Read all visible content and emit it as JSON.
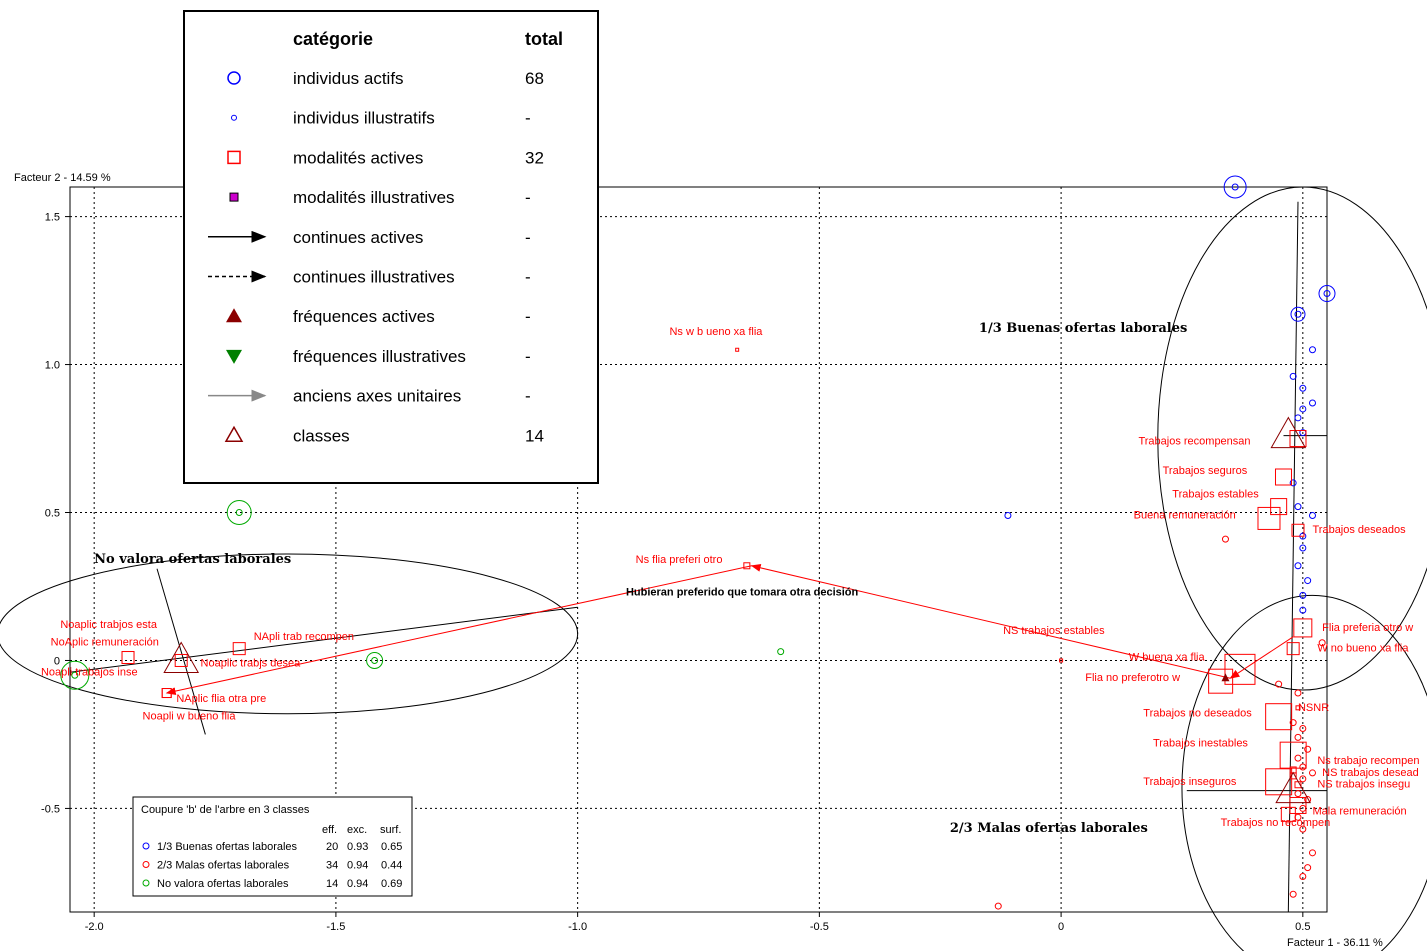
{
  "chart_data": {
    "type": "scatter",
    "xlabel": "Facteur 1  -  36.11 %",
    "ylabel": "Facteur 2  -  14.59 %",
    "xlim": [
      -2.05,
      0.55
    ],
    "ylim": [
      -0.85,
      1.6
    ],
    "x_ticks": [
      -2.0,
      -1.5,
      -1.0,
      -0.5,
      0,
      0.5
    ],
    "x_tick_labels": [
      "-2.0",
      "-1.5",
      "-1.0",
      "-0.5",
      "0",
      "0.5"
    ],
    "y_ticks": [
      -0.5,
      0,
      0.5,
      1.0,
      1.5
    ],
    "y_tick_labels": [
      "-0.5",
      "0",
      "0.5",
      "1.0",
      "1.5"
    ],
    "grid": true,
    "colors": {
      "active": "#ff0000",
      "class1": "#0000ff",
      "class2": "#ff0000",
      "class3": "#00aa00",
      "class_marker": "#8b0000"
    },
    "modalities": [
      {
        "label": "Ns w b ueno xa flia",
        "x": -0.67,
        "y": 1.05,
        "size": 3,
        "lx": -0.81,
        "ly": 1.1
      },
      {
        "label": "Ns flia preferi otro",
        "x": -0.65,
        "y": 0.32,
        "size": 6,
        "lx": -0.88,
        "ly": 0.33
      },
      {
        "label": "NS trabajos estables",
        "x": 0.0,
        "y": 0.0,
        "size": 3,
        "lx": -0.12,
        "ly": 0.09
      },
      {
        "label": "Trabajos recompensan",
        "x": 0.49,
        "y": 0.75,
        "size": 16,
        "lx": 0.16,
        "ly": 0.73
      },
      {
        "label": "Trabajos seguros",
        "x": 0.46,
        "y": 0.62,
        "size": 16,
        "lx": 0.21,
        "ly": 0.63
      },
      {
        "label": "Trabajos estables",
        "x": 0.45,
        "y": 0.52,
        "size": 16,
        "lx": 0.23,
        "ly": 0.55
      },
      {
        "label": "Buena remuneración",
        "x": 0.43,
        "y": 0.48,
        "size": 22,
        "lx": 0.15,
        "ly": 0.48
      },
      {
        "label": "Trabajos  deseados",
        "x": 0.49,
        "y": 0.44,
        "size": 12,
        "lx": 0.52,
        "ly": 0.43
      },
      {
        "label": "Flia preferia otro w",
        "x": 0.5,
        "y": 0.11,
        "size": 18,
        "lx": 0.54,
        "ly": 0.1
      },
      {
        "label": "W no bueno xa flia",
        "x": 0.48,
        "y": 0.04,
        "size": 12,
        "lx": 0.53,
        "ly": 0.03
      },
      {
        "label": "W buena  xa flia",
        "x": 0.37,
        "y": -0.03,
        "size": 30,
        "lx": 0.14,
        "ly": -0.0
      },
      {
        "label": "Flia no preferotro w",
        "x": 0.33,
        "y": -0.07,
        "size": 24,
        "lx": 0.05,
        "ly": -0.07
      },
      {
        "label": "NSNR",
        "x": 0.49,
        "y": -0.16,
        "size": 4,
        "lx": 0.49,
        "ly": -0.17
      },
      {
        "label": "Trabajos no deseados",
        "x": 0.45,
        "y": -0.19,
        "size": 26,
        "lx": 0.17,
        "ly": -0.19
      },
      {
        "label": "Trabajos inestables",
        "x": 0.48,
        "y": -0.32,
        "size": 26,
        "lx": 0.19,
        "ly": -0.29
      },
      {
        "label": "Trabajos inseguros",
        "x": 0.45,
        "y": -0.41,
        "size": 26,
        "lx": 0.17,
        "ly": -0.42
      },
      {
        "label": "Ns trabajo recompen",
        "x": 0.48,
        "y": -0.37,
        "size": 6,
        "lx": 0.53,
        "ly": -0.35
      },
      {
        "label": "NS trabajos desead",
        "x": 0.48,
        "y": -0.39,
        "size": 6,
        "lx": 0.54,
        "ly": -0.39
      },
      {
        "label": "NS  trabajos insegu",
        "x": 0.49,
        "y": -0.42,
        "size": 6,
        "lx": 0.53,
        "ly": -0.43
      },
      {
        "label": "Mala remuneración",
        "x": 0.49,
        "y": -0.49,
        "size": 16,
        "lx": 0.52,
        "ly": -0.52
      },
      {
        "label": "Trabajos no recompen",
        "x": 0.47,
        "y": -0.52,
        "size": 14,
        "lx": 0.33,
        "ly": -0.56
      },
      {
        "label": "Noaplic trabjos esta",
        "x": -1.93,
        "y": 0.01,
        "size": 12,
        "lx": -2.07,
        "ly": 0.11
      },
      {
        "label": "NoAplic remuneración",
        "x": -1.93,
        "y": 0.01,
        "size": 12,
        "lx": -2.09,
        "ly": 0.05
      },
      {
        "label": "Noapli trabajos inse",
        "x": -1.93,
        "y": 0.01,
        "size": 12,
        "lx": -2.11,
        "ly": -0.05
      },
      {
        "label": "NApli trab recompen",
        "x": -1.7,
        "y": 0.04,
        "size": 12,
        "lx": -1.67,
        "ly": 0.07
      },
      {
        "label": "Noaplic trabjs desea",
        "x": -1.82,
        "y": 0.0,
        "size": 12,
        "lx": -1.78,
        "ly": -0.02
      },
      {
        "label": "NAplic flia otra pre",
        "x": -1.85,
        "y": -0.11,
        "size": 9,
        "lx": -1.83,
        "ly": -0.14
      },
      {
        "label": "Noapli w bueno flia",
        "x": -1.85,
        "y": -0.11,
        "size": 9,
        "lx": -1.9,
        "ly": -0.2
      }
    ],
    "annotations": [
      {
        "label": "Hubieran preferido que tomara otra decisión",
        "x": -0.9,
        "y": 0.22
      }
    ],
    "arrows": [
      {
        "from": [
          0.35,
          -0.06
        ],
        "to": [
          -0.64,
          0.32
        ]
      },
      {
        "from": [
          -0.64,
          0.32
        ],
        "to": [
          -1.85,
          -0.11
        ]
      },
      {
        "from": [
          0.48,
          0.08
        ],
        "to": [
          0.35,
          -0.06
        ]
      }
    ],
    "classes": [
      {
        "name": "1/3 Buenas ofertas laborales",
        "x": 0.47,
        "y": 0.76,
        "color": "#0000ff",
        "lx": -0.17,
        "ly": 1.11,
        "ellipse": {
          "cx": 0.5,
          "cy": 0.75,
          "rx": 0.3,
          "ry": 0.85
        }
      },
      {
        "name": "2/3   Malas ofertas laborales",
        "x": 0.48,
        "y": -0.44,
        "color": "#ff0000",
        "lx": -0.23,
        "ly": -0.58,
        "ellipse": {
          "cx": 0.52,
          "cy": -0.43,
          "rx": 0.27,
          "ry": 0.65
        }
      },
      {
        "name": "No valora ofertas laborales",
        "x": -1.82,
        "y": 0.0,
        "color": "#00aa00",
        "lx": -2.0,
        "ly": 0.33,
        "ellipse": {
          "cx": -1.6,
          "cy": 0.09,
          "rx": 0.6,
          "ry": 0.27
        }
      }
    ],
    "individuals_class1": [
      [
        0.36,
        1.6
      ],
      [
        0.55,
        1.24
      ],
      [
        0.49,
        1.17
      ],
      [
        0.52,
        1.05
      ],
      [
        0.48,
        0.96
      ],
      [
        0.5,
        0.92
      ],
      [
        0.52,
        0.87
      ],
      [
        0.5,
        0.85
      ],
      [
        0.49,
        0.82
      ],
      [
        0.5,
        0.77
      ],
      [
        0.48,
        0.6
      ],
      [
        0.49,
        0.52
      ],
      [
        0.52,
        0.49
      ],
      [
        0.5,
        0.42
      ],
      [
        0.5,
        0.38
      ],
      [
        0.49,
        0.32
      ],
      [
        0.51,
        0.27
      ],
      [
        0.5,
        0.22
      ],
      [
        0.5,
        0.17
      ],
      [
        -0.11,
        0.49
      ]
    ],
    "individuals_class2": [
      [
        0.48,
        -0.21
      ],
      [
        0.5,
        -0.23
      ],
      [
        0.49,
        -0.26
      ],
      [
        0.51,
        -0.3
      ],
      [
        0.49,
        -0.33
      ],
      [
        0.5,
        -0.36
      ],
      [
        0.52,
        -0.38
      ],
      [
        0.5,
        -0.4
      ],
      [
        0.49,
        -0.45
      ],
      [
        0.51,
        -0.47
      ],
      [
        0.5,
        -0.5
      ],
      [
        0.49,
        -0.53
      ],
      [
        0.5,
        -0.57
      ],
      [
        0.52,
        -0.65
      ],
      [
        0.51,
        -0.7
      ],
      [
        0.5,
        -0.73
      ],
      [
        0.48,
        -0.79
      ],
      [
        -0.13,
        -0.83
      ],
      [
        0.34,
        0.41
      ],
      [
        0.45,
        -0.08
      ],
      [
        0.49,
        -0.11
      ],
      [
        0.54,
        0.06
      ]
    ],
    "individuals_class3": [
      [
        -1.7,
        0.5
      ],
      [
        -1.42,
        0.0
      ],
      [
        -2.04,
        -0.05
      ],
      [
        -0.58,
        0.03
      ]
    ]
  },
  "legend": {
    "headers": {
      "category": "catégorie",
      "total": "total"
    },
    "rows": [
      {
        "icon": "open-circle-blue-icon",
        "label": "individus actifs",
        "total": "68"
      },
      {
        "icon": "small-circle-blue-icon",
        "label": "individus illustratifs",
        "total": "-"
      },
      {
        "icon": "open-square-red-icon",
        "label": "modalités actives",
        "total": "32"
      },
      {
        "icon": "filled-square-magenta-icon",
        "label": "modalités illustratives",
        "total": "-"
      },
      {
        "icon": "solid-arrow-icon",
        "label": "continues actives",
        "total": "-"
      },
      {
        "icon": "dashed-arrow-icon",
        "label": "continues illustratives",
        "total": "-"
      },
      {
        "icon": "filled-triangle-up-icon",
        "label": "fréquences actives",
        "total": "-"
      },
      {
        "icon": "filled-triangle-down-icon",
        "label": "fréquences illustratives",
        "total": "-"
      },
      {
        "icon": "gray-arrow-icon",
        "label": "anciens axes unitaires",
        "total": "-"
      },
      {
        "icon": "open-triangle-icon",
        "label": "classes",
        "total": "14"
      }
    ]
  },
  "partition_box": {
    "title": "Coupure 'b' de l'arbre en  3 classes",
    "cols": [
      "eff.",
      "exc.",
      "surf."
    ],
    "rows": [
      {
        "color": "#0000ff",
        "label": "1/3 Buenas ofertas laborales",
        "eff": "20",
        "exc": "0.93",
        "surf": "0.65"
      },
      {
        "color": "#ff0000",
        "label": "2/3   Malas ofertas laborales",
        "eff": "34",
        "exc": "0.94",
        "surf": "0.44"
      },
      {
        "color": "#00aa00",
        "label": "No valora ofertas laborales",
        "eff": "14",
        "exc": "0.94",
        "surf": "0.69"
      }
    ]
  }
}
